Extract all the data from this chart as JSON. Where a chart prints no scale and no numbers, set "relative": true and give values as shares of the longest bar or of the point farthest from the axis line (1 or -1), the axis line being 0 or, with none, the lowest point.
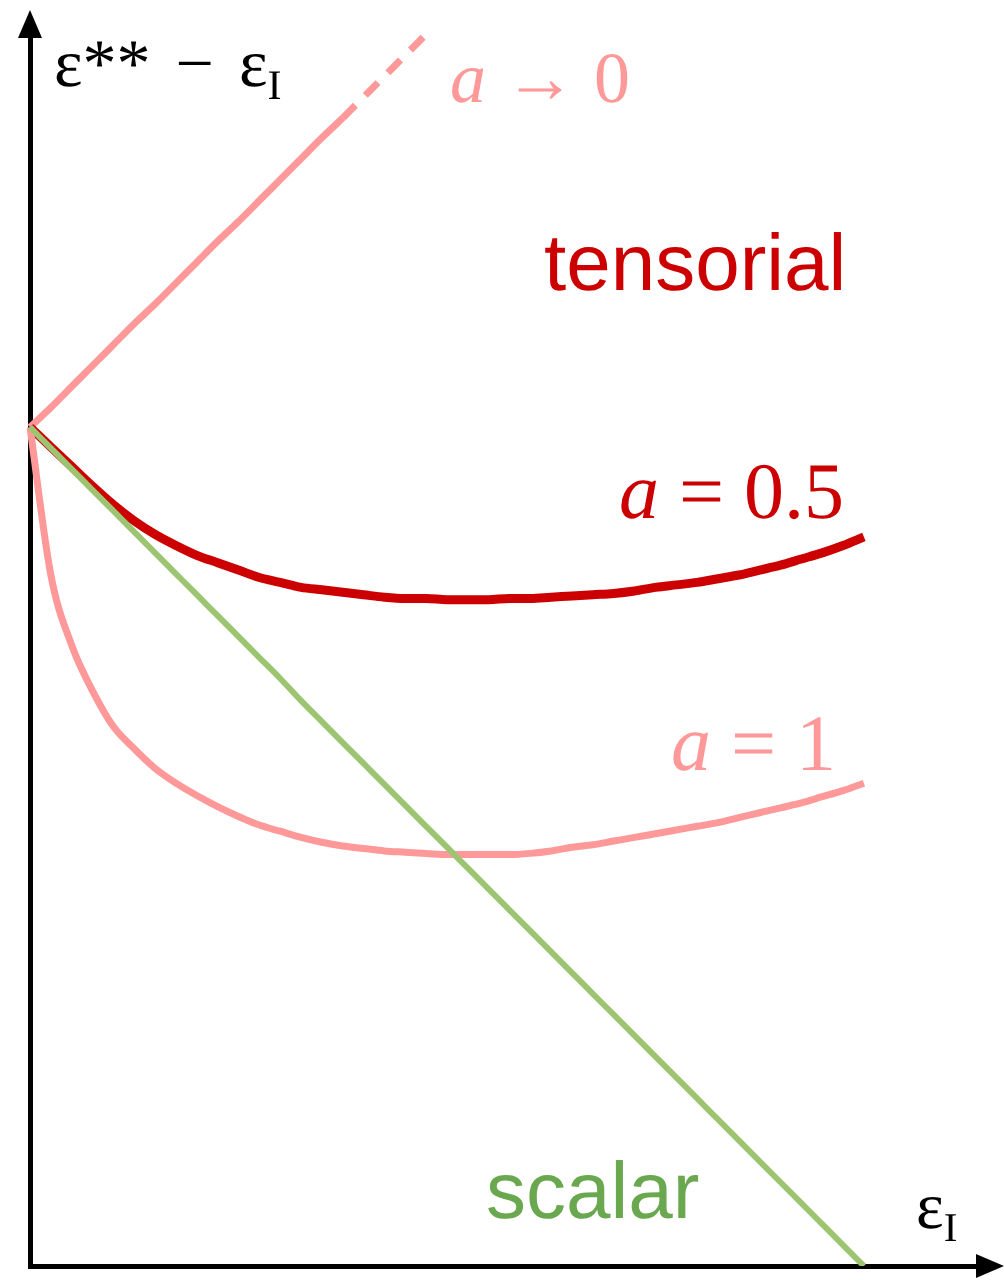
{
  "chart_data": {
    "type": "line",
    "relative": true,
    "xlabel": "ε$_{I}$",
    "ylabel": "ε** − ε$_{I}$",
    "categories": [
      null,
      null,
      null,
      null,
      null,
      null,
      null,
      null,
      null,
      null,
      null,
      null,
      null,
      null,
      null,
      null,
      null,
      null,
      null,
      null,
      null,
      null,
      null,
      null,
      null,
      null,
      null,
      null,
      null,
      null,
      null,
      null,
      null,
      null,
      null,
      null,
      null,
      null,
      null,
      null,
      null,
      null,
      null,
      null,
      null,
      null,
      null
    ],
    "series": [
      {
        "color": "#ff9999",
        "values": [
          0.681,
          0.697,
          0.714,
          0.731,
          0.748,
          0.765,
          0.781,
          0.798,
          0.815,
          0.832,
          0.848,
          0.865,
          0.882,
          0.899,
          0.916,
          0.932,
          null,
          null,
          null,
          null,
          null,
          null,
          null,
          null,
          null,
          null,
          null,
          null,
          null,
          null,
          null,
          null,
          null,
          null,
          null,
          null,
          null,
          null,
          null,
          null,
          null,
          null,
          null,
          null,
          null,
          null,
          null
        ]
      },
      {
        "name": "a → 0",
        "color": "#ff9999",
        "line_style": "dashed",
        "values": [
          null,
          null,
          null,
          null,
          null,
          null,
          null,
          null,
          null,
          null,
          null,
          null,
          null,
          null,
          null,
          0.932,
          0.949,
          0.966,
          0.983,
          1.0,
          null,
          null,
          null,
          null,
          null,
          null,
          null,
          null,
          null,
          null,
          null,
          null,
          null,
          null,
          null,
          null,
          null,
          null,
          null,
          null,
          null,
          null,
          null,
          null,
          null,
          null,
          null
        ]
      },
      {
        "name": "a = 0.5",
        "color": "#cc0000",
        "values": [
          0.681,
          0.665,
          0.649,
          0.633,
          0.618,
          0.605,
          0.594,
          0.585,
          0.577,
          0.571,
          0.565,
          0.559,
          0.555,
          0.551,
          0.549,
          0.547,
          0.545,
          0.543,
          0.542,
          0.542,
          0.541,
          0.541,
          0.541,
          0.542,
          0.542,
          0.543,
          0.544,
          0.545,
          0.546,
          0.548,
          0.551,
          0.553,
          0.555,
          0.558,
          0.561,
          0.565,
          0.569,
          0.574,
          0.579,
          0.585,
          0.592,
          null,
          null,
          null,
          null,
          null,
          null
        ]
      },
      {
        "name": "a = 1",
        "color": "#ff9999",
        "values": [
          0.681,
          0.561,
          0.504,
          0.467,
          0.438,
          0.42,
          0.404,
          0.392,
          0.382,
          0.373,
          0.365,
          0.358,
          0.353,
          0.348,
          0.344,
          0.341,
          0.339,
          0.337,
          0.336,
          0.335,
          0.334,
          0.334,
          0.334,
          0.334,
          0.335,
          0.337,
          0.34,
          0.342,
          0.345,
          0.348,
          0.351,
          0.354,
          0.357,
          0.36,
          0.364,
          0.368,
          0.372,
          0.376,
          0.381,
          0.386,
          0.392,
          null,
          null,
          null,
          null,
          null,
          null
        ]
      },
      {
        "name": "scalar",
        "color": "#9dc571",
        "values": [
          0.681,
          0.664,
          0.647,
          0.63,
          0.613,
          0.596,
          0.579,
          0.562,
          0.545,
          0.528,
          0.511,
          0.494,
          0.477,
          0.459,
          0.442,
          0.425,
          0.408,
          0.391,
          0.374,
          0.357,
          0.34,
          0.323,
          0.306,
          0.289,
          0.272,
          0.255,
          0.238,
          0.221,
          0.204,
          0.187,
          0.17,
          0.153,
          0.136,
          0.119,
          0.102,
          0.085,
          0.068,
          0.051,
          0.034,
          0.017,
          0,
          null,
          null,
          null,
          null,
          null,
          null
        ]
      }
    ],
    "annotations": [
      "tensorial"
    ]
  }
}
